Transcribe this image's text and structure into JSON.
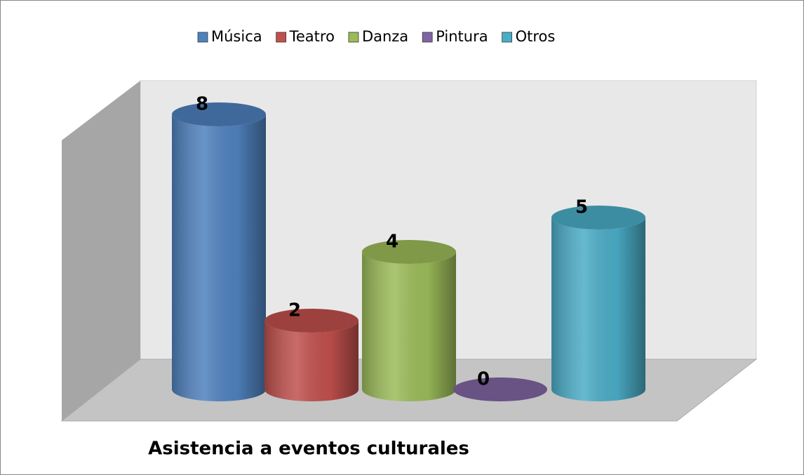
{
  "chart_data": {
    "type": "cylinder",
    "title": "Asistencia a eventos culturales",
    "categories": [
      null
    ],
    "series": [
      {
        "name": "Música",
        "color": "#4f81bd",
        "values": [
          8
        ]
      },
      {
        "name": "Teatro",
        "color": "#c0504d",
        "values": [
          2
        ]
      },
      {
        "name": "Danza",
        "color": "#9bbb59",
        "values": [
          4
        ]
      },
      {
        "name": "Pintura",
        "color": "#8064a2",
        "values": [
          0
        ]
      },
      {
        "name": "Otros",
        "color": "#4bacc6",
        "values": [
          5
        ]
      }
    ],
    "legend": "top"
  }
}
